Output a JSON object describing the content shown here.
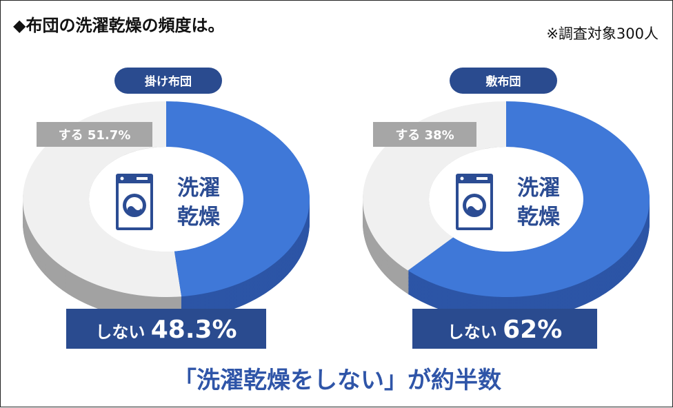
{
  "title": "◆布団の洗濯乾燥の頻度は。",
  "note": "※調査対象300人",
  "center_label": [
    "洗濯",
    "乾燥"
  ],
  "caption": "「洗濯乾燥をしない」が約半数",
  "colors": {
    "yes_top": "#f0f0f0",
    "yes_side": "#a2a2a2",
    "no_top": "#3f78d8",
    "no_side": "#2c55a6",
    "tag_gray": "#a6a6a6",
    "header_navy": "#2a4b8f",
    "label_navy": "#2b4c93",
    "icon_navy": "#2b4c93"
  },
  "icons": [
    "washing-machine-icon"
  ],
  "chart_data": [
    {
      "type": "pie",
      "title": "掛け布団",
      "slices": [
        {
          "label": "しない",
          "value": 48.3
        },
        {
          "label": "する",
          "value": 51.7
        }
      ],
      "data_labels": {
        "yes": "する 51.7%",
        "no_prefix": "しない",
        "no_value": "48.3%"
      }
    },
    {
      "type": "pie",
      "title": "敷布団",
      "slices": [
        {
          "label": "しない",
          "value": 62
        },
        {
          "label": "する",
          "value": 38
        }
      ],
      "data_labels": {
        "yes": "する 38%",
        "no_prefix": "しない",
        "no_value": "62%"
      }
    }
  ]
}
